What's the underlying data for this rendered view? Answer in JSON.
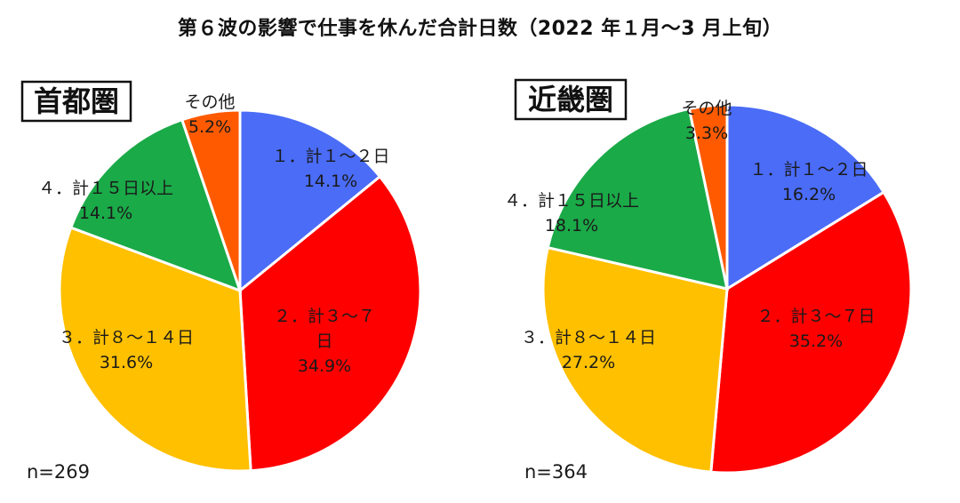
{
  "title": "第６波の影響で仕事を休んだ合計日数（2022 年１月〜3 月上旬）",
  "chart_data": [
    {
      "type": "pie",
      "region": "首都圏",
      "n_label": "n=269",
      "slices": [
        {
          "name": "１．計１〜２日",
          "name_lines": [
            "１．計１〜２日"
          ],
          "value": 14.1,
          "pct_label": "14.1%",
          "color": "#4a6cf7"
        },
        {
          "name": "２．計３〜７日",
          "name_lines": [
            "２．計３〜７",
            "日"
          ],
          "value": 34.9,
          "pct_label": "34.9%",
          "color": "#ff0000"
        },
        {
          "name": "３．計８〜１４日",
          "name_lines": [
            "３．計８〜１４日"
          ],
          "value": 31.6,
          "pct_label": "31.6%",
          "color": "#ffc000"
        },
        {
          "name": "４．計１５日以上",
          "name_lines": [
            "４．計１５日以上"
          ],
          "value": 14.1,
          "pct_label": "14.1%",
          "color": "#1aaa48"
        },
        {
          "name": "その他",
          "name_lines": [
            "その他"
          ],
          "value": 5.2,
          "pct_label": "5.2%",
          "color": "#ff5a00"
        }
      ]
    },
    {
      "type": "pie",
      "region": "近畿圏",
      "n_label": "n=364",
      "slices": [
        {
          "name": "１．計１〜２日",
          "name_lines": [
            "１．計１〜２日"
          ],
          "value": 16.2,
          "pct_label": "16.2%",
          "color": "#4a6cf7"
        },
        {
          "name": "２．計３〜７日",
          "name_lines": [
            "２．計３〜７日"
          ],
          "value": 35.2,
          "pct_label": "35.2%",
          "color": "#ff0000"
        },
        {
          "name": "３．計８〜１４日",
          "name_lines": [
            "３．計８〜１４日"
          ],
          "value": 27.2,
          "pct_label": "27.2%",
          "color": "#ffc000"
        },
        {
          "name": "４．計１５日以上",
          "name_lines": [
            "４．計１５日以上"
          ],
          "value": 18.1,
          "pct_label": "18.1%",
          "color": "#1aaa48"
        },
        {
          "name": "その他",
          "name_lines": [
            "その他"
          ],
          "value": 3.3,
          "pct_label": "3.3%",
          "color": "#ff5a00"
        }
      ]
    }
  ]
}
